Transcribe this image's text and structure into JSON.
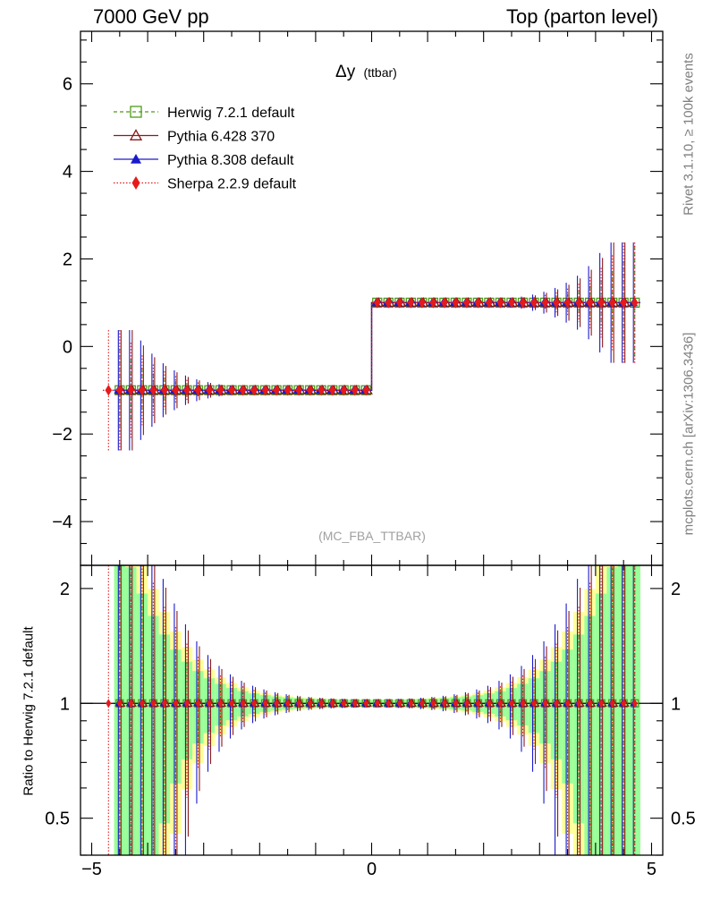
{
  "header": {
    "left": "7000 GeV pp",
    "right": "Top (parton level)"
  },
  "side": {
    "rivet": "Rivet 3.1.10, ≥ 100k events",
    "mcplots": "mcplots.cern.ch [arXiv:1306.3436]"
  },
  "chart_data": [
    {
      "type": "line",
      "panel": "main",
      "title": "Δy",
      "title_suffix": "(ttbar)",
      "watermark": "(MC_FBA_TTBAR)",
      "xlim": [
        -5.2,
        5.2
      ],
      "ylim": [
        -5.0,
        7.2
      ],
      "yticks": [
        -4,
        -2,
        0,
        2,
        4,
        6
      ],
      "ytick_labels": [
        "−4",
        "−2",
        "0",
        "2",
        "4",
        "6"
      ],
      "legend_position": "top-left",
      "bins": {
        "lo": -4.8,
        "hi": 4.8,
        "width": 0.2
      },
      "series": [
        {
          "name": "Herwig 7.2.1 default",
          "color": "#4d9a1a",
          "marker": "open-square",
          "linestyle": "dashed",
          "left_value": -1.0,
          "right_value": 1.0,
          "occupied_range": [
            -4.6,
            4.8
          ]
        },
        {
          "name": "Pythia 6.428 370",
          "color": "#8b1a1a",
          "marker": "open-triangle",
          "linestyle": "solid",
          "left_value": -1.0,
          "right_value": 1.0,
          "occupied_range": [
            -4.6,
            4.6
          ]
        },
        {
          "name": "Pythia 8.308 default",
          "color": "#1a1acc",
          "marker": "filled-triangle",
          "linestyle": "solid",
          "left_value": -1.0,
          "right_value": 1.0,
          "occupied_range": [
            -4.6,
            4.8
          ]
        },
        {
          "name": "Sherpa 2.2.9 default",
          "color": "#e61a1a",
          "marker": "filled-diamond",
          "linestyle": "dotted",
          "left_value": -1.0,
          "right_value": 1.0,
          "occupied_range": [
            -4.8,
            4.8
          ]
        }
      ]
    },
    {
      "type": "line",
      "panel": "ratio",
      "ylabel": "Ratio to Herwig 7.2.1 default",
      "xlim": [
        -5.2,
        5.2
      ],
      "ylim": [
        0.4,
        2.3
      ],
      "xticks": [
        -5,
        0,
        5
      ],
      "xtick_labels": [
        "−5",
        "0",
        "5"
      ],
      "yticks": [
        0.5,
        1,
        2
      ],
      "ytick_labels": [
        "0.5",
        "1",
        "2"
      ],
      "reference_value": 1.0,
      "bands": [
        {
          "name": "stat",
          "color": "#99ff99"
        },
        {
          "name": "total",
          "color": "#ffff99"
        }
      ]
    }
  ]
}
